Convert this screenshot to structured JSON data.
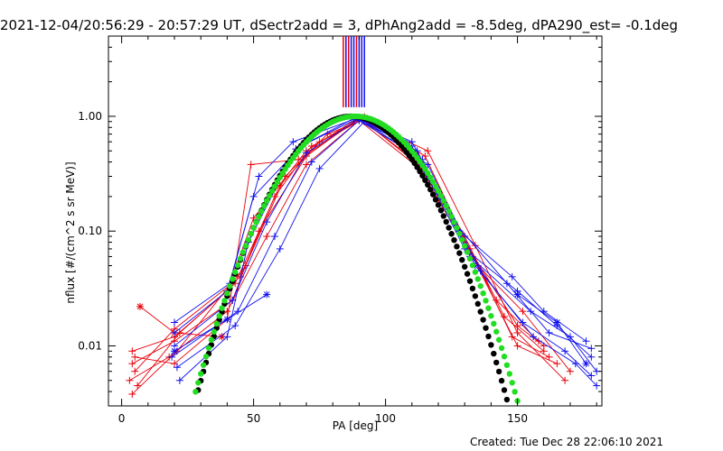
{
  "chart_data": {
    "type": "line",
    "title": "2021-12-04/20:56:29 - 20:57:29 UT, dSectr2add = 3, dPhAng2add = -8.5deg, dPA290_est= -0.1deg",
    "xlabel": "PA [deg]",
    "ylabel": "nflux [#/(cm^2 s sr MeV)]",
    "xlim": [
      -5,
      182
    ],
    "ylim": [
      0.003,
      5
    ],
    "yscale": "log",
    "x_ticks": [
      "0",
      "50",
      "100",
      "150"
    ],
    "y_ticks": [
      "0.01",
      "0.10",
      "1.00"
    ],
    "footer": "Created: Tue Dec 28 22:06:10 2021",
    "colors": {
      "red": "#e8000b",
      "blue": "#1010ee",
      "black": "#000000",
      "green": "#22dd22"
    },
    "vertical_markers": {
      "x": [
        84,
        85,
        86,
        87,
        88,
        89,
        90,
        91,
        92
      ],
      "colors": [
        "#e8000b",
        "#1010ee",
        "#e8000b",
        "#1010ee",
        "#1010ee",
        "#e8000b",
        "#1010ee",
        "#1010ee",
        "#1010ee"
      ],
      "ylim": [
        1.2,
        5
      ]
    },
    "series": [
      {
        "color": "red",
        "marker": "plus",
        "x": [
          4,
          20,
          40,
          50,
          70,
          90,
          110,
          130,
          150,
          160
        ],
        "y": [
          0.009,
          0.012,
          0.03,
          0.13,
          0.5,
          0.98,
          0.42,
          0.08,
          0.015,
          0.01
        ]
      },
      {
        "color": "red",
        "marker": "plus",
        "x": [
          4,
          20,
          42,
          52,
          70,
          90,
          112,
          132,
          148,
          162
        ],
        "y": [
          0.007,
          0.011,
          0.025,
          0.1,
          0.45,
          0.97,
          0.4,
          0.07,
          0.012,
          0.008
        ]
      },
      {
        "color": "red",
        "marker": "plus",
        "x": [
          5,
          20,
          45,
          58,
          72,
          92,
          115,
          133,
          150,
          165
        ],
        "y": [
          0.006,
          0.014,
          0.04,
          0.2,
          0.55,
          0.95,
          0.45,
          0.06,
          0.01,
          0.007
        ]
      },
      {
        "color": "red",
        "marker": "plus",
        "x": [
          3,
          18,
          40,
          55,
          70,
          90,
          113,
          135,
          152,
          170
        ],
        "y": [
          0.005,
          0.008,
          0.02,
          0.09,
          0.38,
          0.92,
          0.35,
          0.05,
          0.02,
          0.006
        ]
      },
      {
        "color": "red",
        "marker": "plus",
        "x": [
          6,
          22,
          43,
          60,
          75,
          92,
          112,
          130,
          145,
          160
        ],
        "y": [
          0.0045,
          0.013,
          0.035,
          0.25,
          0.6,
          0.99,
          0.48,
          0.09,
          0.018,
          0.009
        ]
      },
      {
        "color": "red",
        "marker": "plus",
        "x": [
          4,
          21,
          47,
          62,
          78,
          93,
          110,
          128,
          142,
          158
        ],
        "y": [
          0.0038,
          0.009,
          0.05,
          0.3,
          0.7,
          0.96,
          0.5,
          0.1,
          0.025,
          0.011
        ]
      },
      {
        "color": "red",
        "marker": "plus",
        "x": [
          5,
          20,
          40,
          49,
          67,
          90,
          116,
          134,
          150,
          168
        ],
        "y": [
          0.008,
          0.007,
          0.017,
          0.38,
          0.42,
          0.94,
          0.5,
          0.075,
          0.013,
          0.005
        ]
      },
      {
        "color": "red",
        "marker": "star",
        "x": [
          7,
          20,
          38
        ],
        "y": [
          0.022,
          0.013,
          0.012
        ]
      },
      {
        "color": "blue",
        "marker": "plus",
        "x": [
          20,
          40,
          50,
          68,
          90,
          110,
          130,
          150,
          165,
          178
        ],
        "y": [
          0.013,
          0.03,
          0.2,
          0.55,
          0.97,
          0.55,
          0.07,
          0.03,
          0.015,
          0.008
        ]
      },
      {
        "color": "blue",
        "marker": "plus",
        "x": [
          20,
          42,
          55,
          70,
          90,
          112,
          132,
          155,
          170,
          180
        ],
        "y": [
          0.01,
          0.025,
          0.12,
          0.48,
          0.95,
          0.5,
          0.06,
          0.02,
          0.012,
          0.006
        ]
      },
      {
        "color": "blue",
        "marker": "plus",
        "x": [
          19,
          44,
          58,
          72,
          90,
          114,
          134,
          152,
          168,
          178
        ],
        "y": [
          0.008,
          0.02,
          0.09,
          0.4,
          0.92,
          0.42,
          0.05,
          0.016,
          0.009,
          0.0055
        ]
      },
      {
        "color": "blue",
        "marker": "plus",
        "x": [
          21,
          43,
          60,
          75,
          92,
          116,
          136,
          156,
          172,
          180
        ],
        "y": [
          0.0065,
          0.015,
          0.07,
          0.35,
          0.9,
          0.38,
          0.045,
          0.012,
          0.007,
          0.0045
        ]
      },
      {
        "color": "blue",
        "marker": "plus",
        "x": [
          20,
          41,
          52,
          65,
          90,
          110,
          128,
          148,
          160,
          176
        ],
        "y": [
          0.016,
          0.035,
          0.3,
          0.6,
          0.98,
          0.6,
          0.1,
          0.04,
          0.02,
          0.011
        ]
      },
      {
        "color": "blue",
        "marker": "plus",
        "x": [
          22,
          40,
          48,
          66,
          88,
          108,
          126,
          146,
          162,
          178
        ],
        "y": [
          0.005,
          0.012,
          0.08,
          0.52,
          0.96,
          0.58,
          0.12,
          0.035,
          0.013,
          0.0095
        ]
      },
      {
        "color": "blue",
        "marker": "star",
        "x": [
          20,
          40,
          55
        ],
        "y": [
          0.009,
          0.017,
          0.028
        ]
      },
      {
        "color": "blue",
        "marker": "star",
        "x": [
          150,
          165,
          176
        ],
        "y": [
          0.028,
          0.016,
          0.007
        ]
      }
    ],
    "fits": [
      {
        "color": "black",
        "center": 87,
        "sigma": 17.5,
        "xrange": [
          29,
          146
        ]
      },
      {
        "color": "green",
        "center": 88.5,
        "sigma": 18.2,
        "xrange": [
          28,
          152
        ]
      }
    ]
  }
}
